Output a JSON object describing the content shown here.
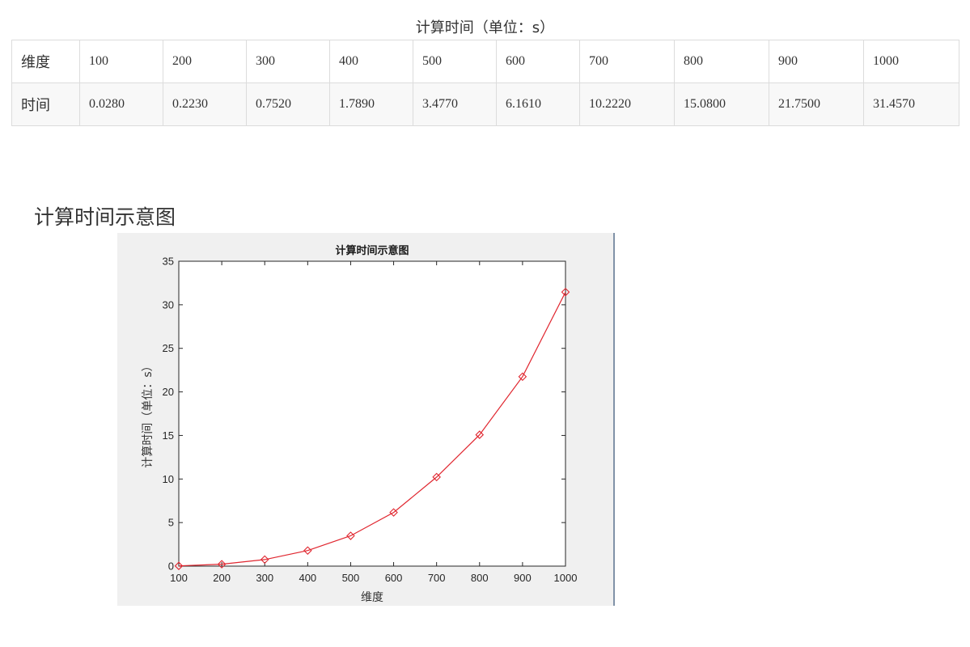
{
  "table": {
    "caption": "计算时间（单位：s）",
    "rows": [
      {
        "label": "维度",
        "cells": [
          "100",
          "200",
          "300",
          "400",
          "500",
          "600",
          "700",
          "800",
          "900",
          "1000"
        ]
      },
      {
        "label": "时间",
        "cells": [
          "0.0280",
          "0.2230",
          "0.7520",
          "1.7890",
          "3.4770",
          "6.1610",
          "10.2220",
          "15.0800",
          "21.7500",
          "31.4570"
        ]
      }
    ]
  },
  "section": {
    "heading": "计算时间示意图"
  },
  "chart_data": {
    "type": "line",
    "title": "计算时间示意图",
    "xlabel": "维度",
    "ylabel": "计算时间（单位：s）",
    "x": [
      100,
      200,
      300,
      400,
      500,
      600,
      700,
      800,
      900,
      1000
    ],
    "series": [
      {
        "values": [
          0.028,
          0.223,
          0.752,
          1.789,
          3.477,
          6.161,
          10.222,
          15.08,
          21.75,
          31.457
        ],
        "color": "#e0262f",
        "marker": "diamond"
      }
    ],
    "xlim": [
      100,
      1000
    ],
    "ylim": [
      0,
      35
    ],
    "xticks": [
      "100",
      "200",
      "300",
      "400",
      "500",
      "600",
      "700",
      "800",
      "900",
      "1000"
    ],
    "yticks": [
      "0",
      "5",
      "10",
      "15",
      "20",
      "25",
      "30",
      "35"
    ],
    "grid": false,
    "colors": {
      "figure_background": "#f0f0f0",
      "axes_background": "#ffffff",
      "axis": "#262626"
    }
  }
}
